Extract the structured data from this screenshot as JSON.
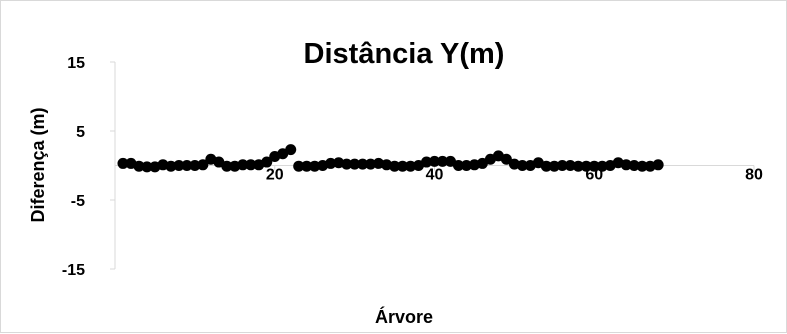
{
  "chart_data": {
    "type": "scatter",
    "title": "Distância Y(m)",
    "xlabel": "Árvore",
    "ylabel": "Diferença (m)",
    "xlim": [
      0,
      80
    ],
    "ylim": [
      -15,
      15
    ],
    "x_ticks": [
      0,
      20,
      40,
      60,
      80
    ],
    "x_tick_labels": [
      "",
      "20",
      "40",
      "60",
      "80"
    ],
    "y_ticks": [
      15,
      5,
      -5,
      -15
    ],
    "y_tick_labels": [
      "15",
      "5",
      "-5",
      "-15"
    ],
    "grid": false,
    "legend": "none",
    "marker_color": "#000000",
    "series": [
      {
        "x": [
          1,
          2,
          3,
          4,
          5,
          6,
          7,
          8,
          9,
          10,
          11,
          12,
          13,
          14,
          15,
          16,
          17,
          18,
          19,
          20,
          21,
          22,
          23,
          24,
          25,
          26,
          27,
          28,
          29,
          30,
          31,
          32,
          33,
          34,
          35,
          36,
          37,
          38,
          39,
          40,
          41,
          42,
          43,
          44,
          45,
          46,
          47,
          48,
          49,
          50,
          51,
          52,
          53,
          54,
          55,
          56,
          57,
          58,
          59,
          60,
          61,
          62,
          63,
          64,
          65,
          66,
          67,
          68
        ],
        "y": [
          0.3,
          0.3,
          -0.1,
          -0.2,
          -0.2,
          0.1,
          -0.1,
          0,
          0,
          0,
          0.1,
          0.9,
          0.5,
          -0.1,
          -0.1,
          0.1,
          0.1,
          0.1,
          0.5,
          1.3,
          1.7,
          2.3,
          -0.1,
          -0.1,
          -0.1,
          0,
          0.3,
          0.4,
          0.2,
          0.2,
          0.2,
          0.2,
          0.3,
          0.1,
          -0.1,
          -0.1,
          -0.1,
          0,
          0.5,
          0.6,
          0.6,
          0.6,
          0,
          0,
          0.1,
          0.3,
          0.9,
          1.4,
          0.9,
          0.2,
          0,
          0,
          0.4,
          -0.1,
          -0.1,
          0,
          0,
          -0.1,
          -0.1,
          -0.1,
          -0.1,
          0,
          0.4,
          0.1,
          0,
          -0.1,
          -0.1,
          0.1
        ]
      }
    ]
  }
}
